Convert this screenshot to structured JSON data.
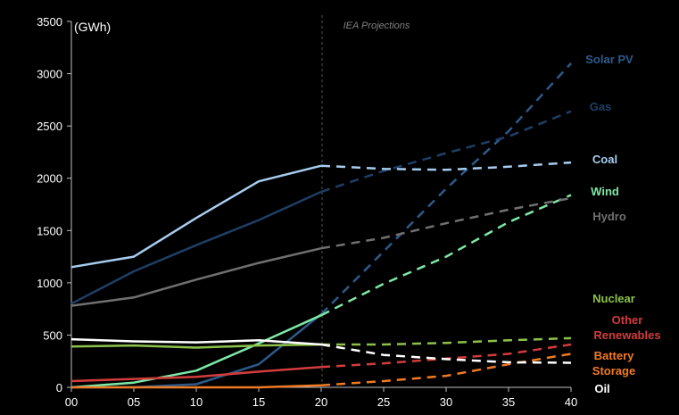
{
  "chart_data": {
    "type": "line",
    "unit_label": "(GWh)",
    "projection_label": "IEA Projections",
    "x_tick_labels": [
      "00",
      "05",
      "10",
      "15",
      "20",
      "25",
      "30",
      "35",
      "40"
    ],
    "xlim": [
      0,
      40
    ],
    "ylim": [
      0,
      3500
    ],
    "y_ticks": [
      0,
      500,
      1000,
      1500,
      2000,
      2500,
      3000,
      3500
    ],
    "projection_start": 20,
    "series": [
      {
        "name": "Solar PV",
        "color": "#2e5a8a",
        "label_lines": [
          "Solar PV"
        ],
        "historical": {
          "x": [
            0,
            5,
            10,
            15,
            20
          ],
          "y": [
            0,
            1,
            30,
            220,
            700
          ]
        },
        "projected": {
          "x": [
            20,
            25,
            30,
            35,
            40
          ],
          "y": [
            700,
            1300,
            1900,
            2450,
            3100
          ]
        }
      },
      {
        "name": "Gas",
        "color": "#1e3f66",
        "label_lines": [
          "Gas"
        ],
        "historical": {
          "x": [
            0,
            5,
            10,
            15,
            20
          ],
          "y": [
            800,
            1110,
            1360,
            1600,
            1870
          ]
        },
        "projected": {
          "x": [
            20,
            25,
            30,
            35,
            40
          ],
          "y": [
            1870,
            2070,
            2240,
            2400,
            2640
          ]
        }
      },
      {
        "name": "Coal",
        "color": "#a6cdf0",
        "label_lines": [
          "Coal"
        ],
        "historical": {
          "x": [
            0,
            5,
            10,
            15,
            20
          ],
          "y": [
            1150,
            1250,
            1620,
            1970,
            2120
          ]
        },
        "projected": {
          "x": [
            20,
            25,
            30,
            35,
            40
          ],
          "y": [
            2120,
            2090,
            2080,
            2110,
            2150
          ]
        }
      },
      {
        "name": "Wind",
        "color": "#7ee8a6",
        "label_lines": [
          "Wind"
        ],
        "historical": {
          "x": [
            0,
            5,
            10,
            15,
            20
          ],
          "y": [
            0,
            45,
            160,
            420,
            690
          ]
        },
        "projected": {
          "x": [
            20,
            25,
            30,
            35,
            40
          ],
          "y": [
            690,
            990,
            1250,
            1580,
            1840
          ]
        }
      },
      {
        "name": "Hydro",
        "color": "#707070",
        "label_lines": [
          "Hydro"
        ],
        "historical": {
          "x": [
            0,
            5,
            10,
            15,
            20
          ],
          "y": [
            780,
            860,
            1030,
            1190,
            1330
          ]
        },
        "projected": {
          "x": [
            20,
            25,
            30,
            35,
            40
          ],
          "y": [
            1330,
            1430,
            1570,
            1700,
            1810
          ]
        }
      },
      {
        "name": "Nuclear",
        "color": "#8cc24a",
        "label_lines": [
          "Nuclear"
        ],
        "historical": {
          "x": [
            0,
            5,
            10,
            15,
            20
          ],
          "y": [
            390,
            400,
            380,
            400,
            410
          ]
        },
        "projected": {
          "x": [
            20,
            25,
            30,
            35,
            40
          ],
          "y": [
            410,
            410,
            425,
            450,
            470
          ]
        }
      },
      {
        "name": "Other Renewables",
        "color": "#d43c3c",
        "label_lines": [
          "Other",
          "Renewables"
        ],
        "historical": {
          "x": [
            0,
            5,
            10,
            15,
            20
          ],
          "y": [
            60,
            80,
            100,
            150,
            195
          ]
        },
        "projected": {
          "x": [
            20,
            25,
            30,
            35,
            40
          ],
          "y": [
            195,
            230,
            275,
            320,
            410
          ]
        }
      },
      {
        "name": "Battery Storage",
        "color": "#f07a24",
        "label_lines": [
          "Battery",
          "Storage"
        ],
        "historical": {
          "x": [
            0,
            5,
            10,
            15,
            20
          ],
          "y": [
            0,
            0,
            0,
            0,
            20
          ]
        },
        "projected": {
          "x": [
            20,
            25,
            30,
            35,
            40
          ],
          "y": [
            20,
            60,
            110,
            220,
            320
          ]
        }
      },
      {
        "name": "Oil",
        "color": "#ffffff",
        "label_lines": [
          "Oil"
        ],
        "historical": {
          "x": [
            0,
            5,
            10,
            15,
            20
          ],
          "y": [
            460,
            440,
            430,
            450,
            410
          ]
        },
        "projected": {
          "x": [
            20,
            25,
            30,
            35,
            40
          ],
          "y": [
            410,
            310,
            270,
            240,
            235
          ]
        }
      }
    ]
  }
}
